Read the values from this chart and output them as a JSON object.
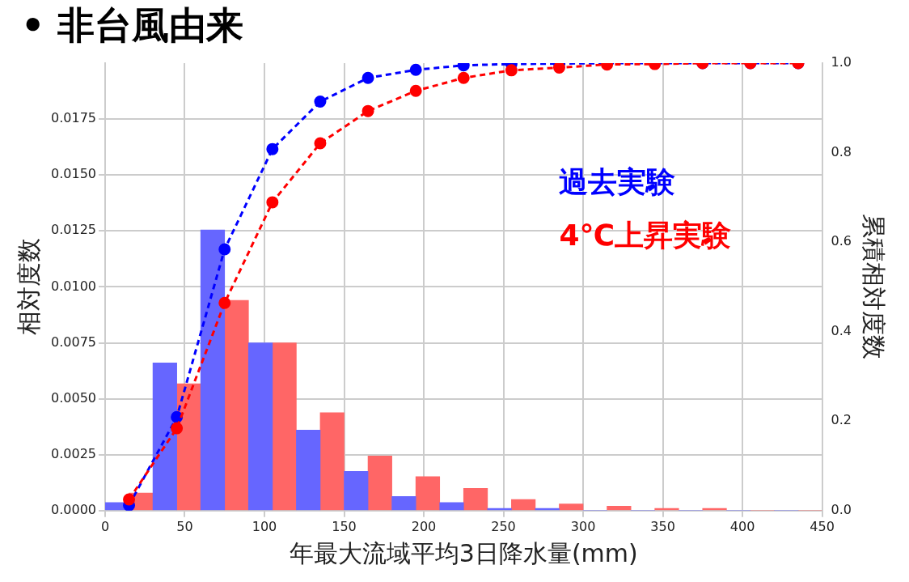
{
  "chart_data": {
    "type": "histogram",
    "title": "• 非台風由来",
    "xlabel": "年最大流域平均3日降水量(mm)",
    "ylabel": "相対度数",
    "y2label": "累積相対度数",
    "bins": [
      0,
      30,
      60,
      90,
      120,
      150,
      180,
      210,
      240,
      270,
      300,
      330,
      360,
      390,
      420,
      450
    ],
    "series": [
      {
        "color": "#6666ff",
        "values": [
          0.00036,
          0.0066,
          0.01254,
          0.0075,
          0.0036,
          0.00175,
          0.00063,
          0.00036,
          0.0001,
          0.0001,
          0,
          0,
          0,
          0,
          0
        ]
      },
      {
        "color": "#ff6666",
        "values": [
          0.00079,
          0.00567,
          0.0094,
          0.0075,
          0.00438,
          0.00244,
          0.00152,
          0.00099,
          0.0005,
          0.0003,
          0.0002,
          0.0001,
          0.0001,
          0,
          0
        ]
      },
      {
        "name": "過去実験",
        "type": "line",
        "axis": "y2",
        "color": "#0000ff",
        "x": [
          15,
          45,
          75,
          105,
          135,
          165,
          195,
          225,
          255,
          285,
          315,
          345,
          375,
          405,
          435
        ],
        "values": [
          0.012,
          0.209,
          0.584,
          0.808,
          0.914,
          0.967,
          0.985,
          0.995,
          0.998,
          0.999,
          1.0,
          1.0,
          1.0,
          1.0,
          1.0
        ]
      },
      {
        "name": "4℃上昇実験",
        "type": "line",
        "axis": "y2",
        "color": "#ff0000",
        "x": [
          15,
          45,
          75,
          105,
          135,
          165,
          195,
          225,
          255,
          285,
          315,
          345,
          375,
          405,
          435
        ],
        "values": [
          0.025,
          0.184,
          0.464,
          0.689,
          0.821,
          0.893,
          0.938,
          0.967,
          0.984,
          0.99,
          0.997,
          0.998,
          1.0,
          1.0,
          1.0
        ]
      }
    ],
    "marker": "circle",
    "line_style": "dashed",
    "grid": true,
    "xlim": [
      0,
      450
    ],
    "xticks": [
      0,
      50,
      100,
      150,
      200,
      250,
      300,
      350,
      400,
      450
    ],
    "ylim": [
      0,
      0.02
    ],
    "yticks": [
      {
        "value": 0,
        "label": "0.0000"
      },
      {
        "value": 0.0025,
        "label": "0.0025"
      },
      {
        "value": 0.005,
        "label": "0.0050"
      },
      {
        "value": 0.0075,
        "label": "0.0075"
      },
      {
        "value": 0.01,
        "label": "0.0100"
      },
      {
        "value": 0.0125,
        "label": "0.0125"
      },
      {
        "value": 0.015,
        "label": "0.0150"
      },
      {
        "value": 0.0175,
        "label": "0.0175"
      }
    ],
    "y2lim": [
      0,
      1
    ],
    "y2ticks": [
      {
        "value": 0,
        "label": "0.0"
      },
      0.2,
      0.4,
      0.6,
      0.8,
      {
        "value": 1,
        "label": "1.0"
      }
    ]
  }
}
